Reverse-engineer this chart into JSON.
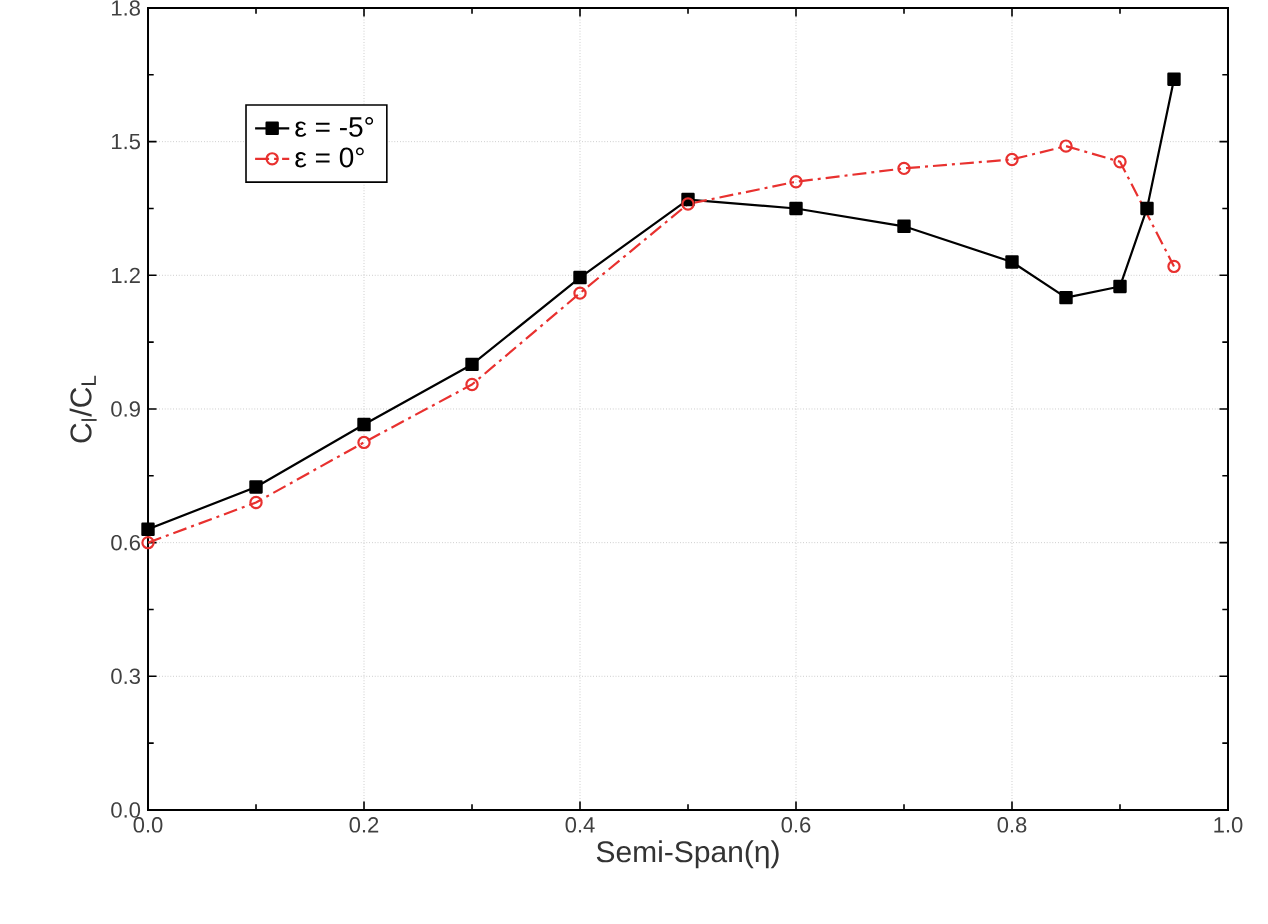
{
  "chart_data": {
    "type": "line",
    "xlabel": "Semi-Span(η)",
    "ylabel": "C$_{l}$/C$_{L}$",
    "xlim": [
      0,
      1.0
    ],
    "xticks": [
      {
        "value": 0,
        "label": "0.0"
      },
      0.2,
      0.4,
      0.6,
      0.8,
      {
        "value": 1.0,
        "label": "1.0"
      }
    ],
    "ylim": [
      0,
      1.8
    ],
    "yticks": [
      {
        "value": 0,
        "label": "0.0"
      },
      0.3,
      0.6,
      0.9,
      1.2,
      1.5,
      1.8
    ],
    "grid": true,
    "legend": "top left",
    "series": [
      {
        "name": "ε = -5°",
        "color": "#000000",
        "marker": "square",
        "line_style": "solid",
        "x": [
          0,
          0.1,
          0.2,
          0.3,
          0.4,
          0.5,
          0.6,
          0.7,
          0.8,
          0.85,
          0.9,
          0.925,
          0.95
        ],
        "values": [
          0.63,
          0.725,
          0.865,
          1.0,
          1.195,
          1.37,
          1.35,
          1.31,
          1.23,
          1.15,
          1.175,
          1.35,
          1.64
        ]
      },
      {
        "name": "ε = 0°",
        "color": "#e8312f",
        "marker": "circle",
        "line_style": "dashdot",
        "x": [
          0,
          0.1,
          0.2,
          0.3,
          0.4,
          0.5,
          0.6,
          0.7,
          0.8,
          0.85,
          0.9,
          0.95
        ],
        "values": [
          0.6,
          0.69,
          0.825,
          0.955,
          1.16,
          1.36,
          1.41,
          1.44,
          1.46,
          1.49,
          1.455,
          1.22
        ]
      }
    ]
  }
}
